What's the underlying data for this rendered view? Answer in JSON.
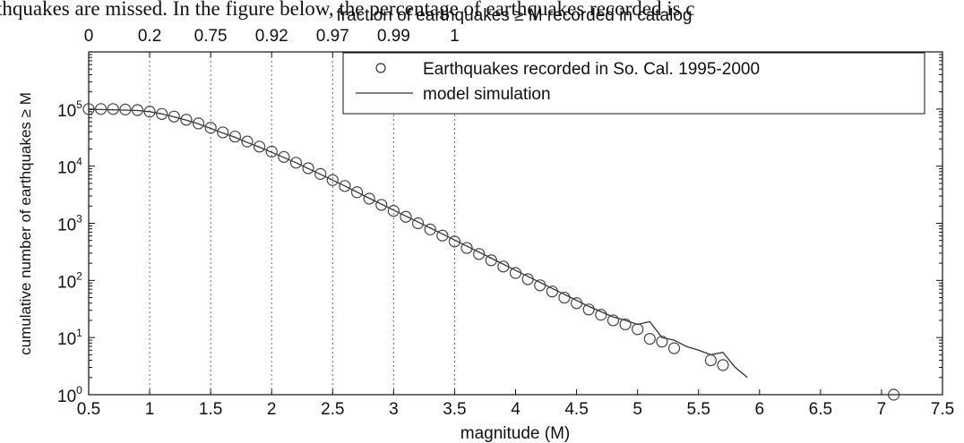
{
  "caption_fragment": "thquakes are missed.  In the figure below, the percentage of earthquakes recorded is c",
  "chart_data": {
    "type": "scatter",
    "title": "",
    "xlabel": "magnitude (M)",
    "ylabel": "cumulative number of earthquakes ≥ M",
    "top_xlabel": "fraction of earthquakes ≥ M recorded in catalog",
    "xlim": [
      0.5,
      7.5
    ],
    "ylim": [
      1,
      1000000
    ],
    "yscale": "log",
    "grid": "vertical dotted lines at magnitudes 1, 1.5, 2, 2.5, 3, 3.5",
    "legend_position": "top-right",
    "x_ticks": [
      0.5,
      1,
      1.5,
      2,
      2.5,
      3,
      3.5,
      4,
      4.5,
      5,
      5.5,
      6,
      6.5,
      7,
      7.5
    ],
    "x_tick_labels": [
      "0.5",
      "1",
      "1.5",
      "2",
      "2.5",
      "3",
      "3.5",
      "4",
      "4.5",
      "5",
      "5.5",
      "6",
      "6.5",
      "7",
      "7.5"
    ],
    "y_ticks": [
      1,
      10,
      100,
      1000,
      10000,
      100000
    ],
    "y_tick_labels": [
      {
        "base": "10",
        "exp": "0"
      },
      {
        "base": "10",
        "exp": "1"
      },
      {
        "base": "10",
        "exp": "2"
      },
      {
        "base": "10",
        "exp": "3"
      },
      {
        "base": "10",
        "exp": "4"
      },
      {
        "base": "10",
        "exp": "5"
      }
    ],
    "top_ticks": [
      {
        "x": 0.5,
        "label": "0"
      },
      {
        "x": 1,
        "label": "0.2"
      },
      {
        "x": 1.5,
        "label": "0.75"
      },
      {
        "x": 2,
        "label": "0.92"
      },
      {
        "x": 2.5,
        "label": "0.97"
      },
      {
        "x": 3,
        "label": "0.99"
      },
      {
        "x": 3.5,
        "label": "1"
      }
    ],
    "series": [
      {
        "name": "Earthquakes recorded in So. Cal. 1995-2000",
        "marker": "open-circle",
        "x": [
          0.5,
          0.6,
          0.7,
          0.8,
          0.9,
          1.0,
          1.1,
          1.2,
          1.3,
          1.4,
          1.5,
          1.6,
          1.7,
          1.8,
          1.9,
          2.0,
          2.1,
          2.2,
          2.3,
          2.4,
          2.5,
          2.6,
          2.7,
          2.8,
          2.9,
          3.0,
          3.1,
          3.2,
          3.3,
          3.4,
          3.5,
          3.6,
          3.7,
          3.8,
          3.9,
          4.0,
          4.1,
          4.2,
          4.3,
          4.4,
          4.5,
          4.6,
          4.7,
          4.8,
          4.9,
          5.0,
          5.1,
          5.2,
          5.3,
          5.6,
          5.7,
          7.1
        ],
        "y": [
          100000,
          100000,
          100000,
          98000,
          96000,
          90000,
          82000,
          74000,
          65000,
          56000,
          47000,
          39000,
          33000,
          27000,
          22000,
          18000,
          14500,
          11500,
          9200,
          7300,
          5700,
          4500,
          3500,
          2700,
          2100,
          1650,
          1300,
          1000,
          780,
          610,
          480,
          370,
          290,
          225,
          175,
          135,
          105,
          82,
          64,
          50,
          40,
          31,
          25,
          20,
          17,
          14,
          9.5,
          8.5,
          6.5,
          4,
          3.3,
          1
        ]
      },
      {
        "name": "model simulation",
        "marker": "line",
        "x": [
          0.5,
          0.6,
          0.7,
          0.8,
          0.9,
          1.0,
          1.1,
          1.2,
          1.3,
          1.4,
          1.5,
          1.6,
          1.7,
          1.8,
          1.9,
          2.0,
          2.2,
          2.4,
          2.6,
          2.8,
          3.0,
          3.2,
          3.4,
          3.6,
          3.8,
          4.0,
          4.2,
          4.4,
          4.6,
          4.8,
          4.9,
          5.0,
          5.1,
          5.2,
          5.3,
          5.4,
          5.5,
          5.6,
          5.7,
          5.8,
          5.9
        ],
        "y": [
          98000,
          98000,
          97000,
          96000,
          94000,
          90000,
          82000,
          73000,
          64000,
          55000,
          46000,
          38000,
          32000,
          26000,
          21500,
          17500,
          11500,
          7200,
          4500,
          2750,
          1700,
          1050,
          650,
          400,
          245,
          150,
          92,
          57,
          35,
          23,
          20,
          17,
          19,
          10,
          9,
          7,
          6,
          5,
          5.5,
          3,
          2
        ]
      }
    ]
  }
}
